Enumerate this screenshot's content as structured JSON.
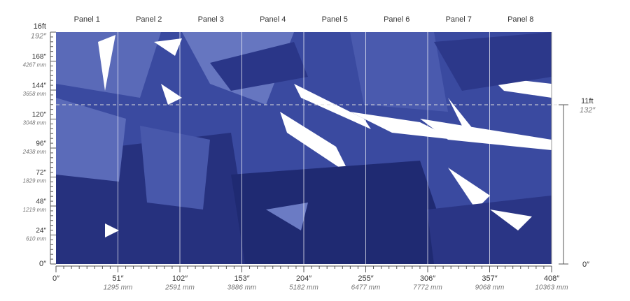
{
  "panels": [
    "Panel 1",
    "Panel 2",
    "Panel 3",
    "Panel 4",
    "Panel 5",
    "Panel 6",
    "Panel 7",
    "Panel 8"
  ],
  "left_ruler": [
    {
      "label": "16ft",
      "sublabel": "192″"
    },
    {
      "label": "168″",
      "sublabel": "4267 mm"
    },
    {
      "label": "144″",
      "sublabel": "3658 mm"
    },
    {
      "label": "120″",
      "sublabel": "3048 mm"
    },
    {
      "label": "96″",
      "sublabel": "2438 mm"
    },
    {
      "label": "72″",
      "sublabel": "1829 mm"
    },
    {
      "label": "48″",
      "sublabel": "1219 mm"
    },
    {
      "label": "24″",
      "sublabel": "610 mm"
    },
    {
      "label": "0″"
    }
  ],
  "right_ruler": {
    "top": {
      "label": "11ft",
      "sublabel": "132″"
    },
    "bottom": "0″"
  },
  "bottom_ruler": [
    {
      "label": "0″"
    },
    {
      "label": "51″",
      "sublabel": "1295 mm"
    },
    {
      "label": "102″",
      "sublabel": "2591 mm"
    },
    {
      "label": "153″",
      "sublabel": "3886 mm"
    },
    {
      "label": "204″",
      "sublabel": "5182 mm"
    },
    {
      "label": "255″",
      "sublabel": "6477 mm"
    },
    {
      "label": "306″",
      "sublabel": "7772 mm"
    },
    {
      "label": "357″",
      "sublabel": "9068 mm"
    },
    {
      "label": "408″",
      "sublabel": "10363 mm"
    }
  ]
}
